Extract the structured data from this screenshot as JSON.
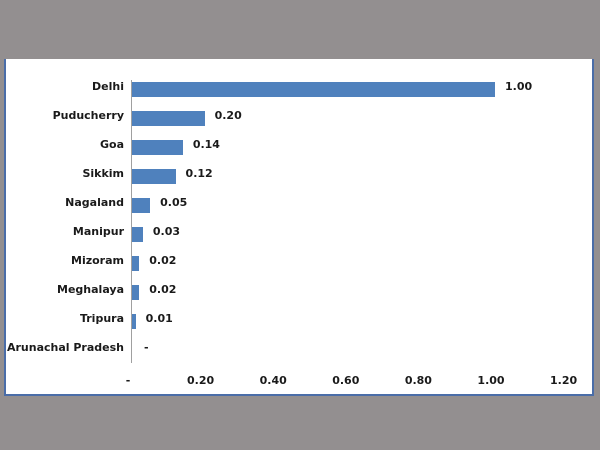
{
  "chart_data": {
    "type": "bar",
    "orientation": "horizontal",
    "title": "",
    "xlabel": "",
    "ylabel": "",
    "categories": [
      "Delhi",
      "Puducherry",
      "Goa",
      "Sikkim",
      "Nagaland",
      "Manipur",
      "Mizoram",
      "Meghalaya",
      "Tripura",
      "Arunachal Pradesh"
    ],
    "values": [
      1.0,
      0.2,
      0.14,
      0.12,
      0.05,
      0.03,
      0.02,
      0.02,
      0.01,
      0
    ],
    "data_labels": [
      "1.00",
      "0.20",
      "0.14",
      "0.12",
      "0.05",
      "0.03",
      "0.02",
      "0.02",
      "0.01",
      "-"
    ],
    "xlim": [
      0,
      1.2
    ],
    "x_ticks": [
      "-",
      "0.20",
      "0.40",
      "0.60",
      "0.80",
      "1.00",
      "1.20"
    ],
    "grid": false,
    "legend": null,
    "bar_color": "#4f81bd"
  }
}
